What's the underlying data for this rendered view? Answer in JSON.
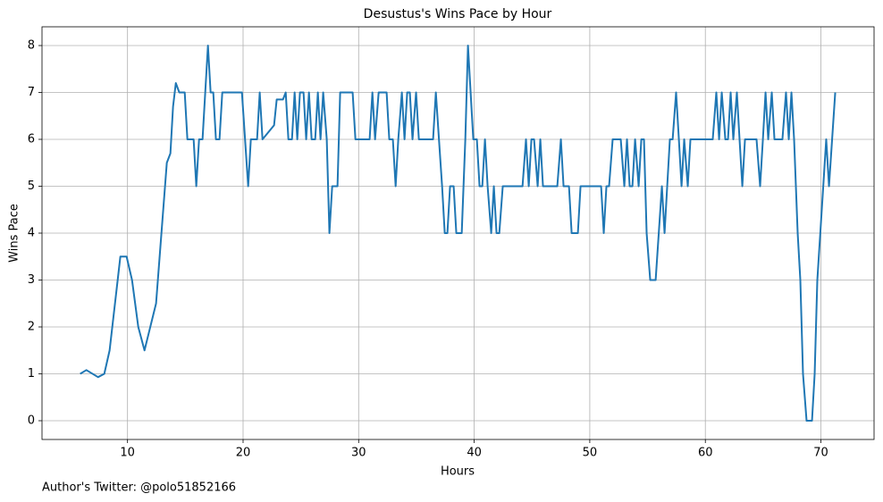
{
  "chart_data": {
    "type": "line",
    "title": "Desustus's Wins Pace by Hour",
    "x_label": "Hours",
    "y_label": "Wins Pace",
    "annotations": [
      "Author's Twitter: @polo51852166"
    ],
    "color": "#1f77b4",
    "grid": true,
    "xlim": [
      2.6,
      74.6
    ],
    "ylim": [
      -0.4,
      8.4
    ],
    "xticks": [
      10,
      20,
      30,
      40,
      50,
      60,
      70
    ],
    "yticks": [
      0,
      1,
      2,
      3,
      4,
      5,
      6,
      7,
      8
    ],
    "x": [
      5.9,
      6.44,
      7.45,
      7.99,
      8.45,
      9.38,
      9.92,
      10.39,
      10.93,
      11.47,
      12.47,
      13.4,
      13.71,
      13.94,
      14.18,
      14.48,
      14.95,
      15.18,
      15.72,
      15.95,
      16.19,
      16.49,
      16.96,
      17.19,
      17.42,
      17.65,
      17.96,
      18.2,
      19.9,
      20.44,
      20.67,
      21.21,
      21.44,
      21.68,
      22.68,
      22.91,
      23.45,
      23.69,
      23.92,
      24.23,
      24.46,
      24.69,
      24.92,
      25.23,
      25.46,
      25.7,
      25.93,
      26.24,
      26.47,
      26.7,
      26.93,
      27.24,
      27.47,
      27.71,
      28.17,
      28.4,
      29.48,
      29.72,
      30.95,
      31.19,
      31.42,
      31.73,
      32.42,
      32.65,
      32.96,
      33.2,
      33.43,
      33.74,
      33.97,
      34.2,
      34.43,
      34.66,
      34.97,
      35.21,
      36.44,
      36.68,
      37.22,
      37.45,
      37.68,
      37.91,
      38.22,
      38.45,
      38.92,
      39.23,
      39.46,
      39.69,
      39.92,
      40.23,
      40.46,
      40.7,
      40.93,
      41.16,
      41.47,
      41.7,
      41.93,
      42.17,
      42.47,
      44.18,
      44.48,
      44.72,
      44.95,
      45.18,
      45.49,
      45.72,
      45.95,
      47.19,
      47.5,
      47.73,
      48.2,
      48.43,
      48.97,
      49.2,
      50.98,
      51.21,
      51.44,
      51.67,
      51.98,
      52.68,
      52.99,
      53.22,
      53.45,
      53.69,
      53.92,
      54.23,
      54.46,
      54.69,
      54.92,
      55.23,
      55.7,
      56.24,
      56.47,
      56.93,
      57.17,
      57.47,
      57.71,
      57.94,
      58.17,
      58.48,
      58.71,
      60.64,
      60.95,
      61.19,
      61.42,
      61.73,
      61.96,
      62.19,
      62.42,
      62.73,
      62.96,
      63.2,
      63.43,
      64.43,
      64.74,
      64.98,
      65.21,
      65.44,
      65.75,
      65.98,
      66.67,
      66.98,
      67.22,
      67.45,
      67.68,
      67.99,
      68.22,
      68.45,
      68.76,
      69.23,
      69.46,
      69.69,
      70.46,
      70.7,
      71.24
    ],
    "values": [
      1,
      1.08,
      0.93,
      1,
      1.5,
      3.5,
      3.5,
      3,
      2,
      1.5,
      2.5,
      5.5,
      5.7,
      6.7,
      7.2,
      7,
      7,
      6,
      6,
      5,
      6,
      6,
      8,
      7,
      7,
      6,
      6,
      7,
      7,
      5,
      6,
      6,
      7,
      6,
      6.3,
      6.85,
      6.85,
      7,
      6,
      6,
      7,
      6,
      7,
      7,
      6,
      7,
      6,
      6,
      7,
      6,
      7,
      6,
      4,
      5,
      5,
      7,
      7,
      6,
      6,
      7,
      6,
      7,
      7,
      6,
      6,
      5,
      6,
      7,
      6,
      7,
      7,
      6,
      7,
      6,
      6,
      7,
      5,
      4,
      4,
      5,
      5,
      4,
      4,
      6,
      8,
      7,
      6,
      6,
      5,
      5,
      6,
      5,
      4,
      5,
      4,
      4,
      5,
      5,
      6,
      5,
      6,
      6,
      5,
      6,
      5,
      5,
      6,
      5,
      5,
      4,
      4,
      5,
      5,
      4,
      5,
      5,
      6,
      6,
      5,
      6,
      5,
      5,
      6,
      5,
      6,
      6,
      4,
      3,
      3,
      5,
      4,
      6,
      6,
      7,
      6,
      5,
      6,
      5,
      6,
      6,
      7,
      6,
      7,
      6,
      6,
      7,
      6,
      7,
      6,
      5,
      6,
      6,
      5,
      6,
      7,
      6,
      7,
      6,
      6,
      7,
      6,
      7,
      6,
      4,
      3,
      1,
      0,
      0,
      1,
      3,
      6,
      5,
      7
    ]
  }
}
